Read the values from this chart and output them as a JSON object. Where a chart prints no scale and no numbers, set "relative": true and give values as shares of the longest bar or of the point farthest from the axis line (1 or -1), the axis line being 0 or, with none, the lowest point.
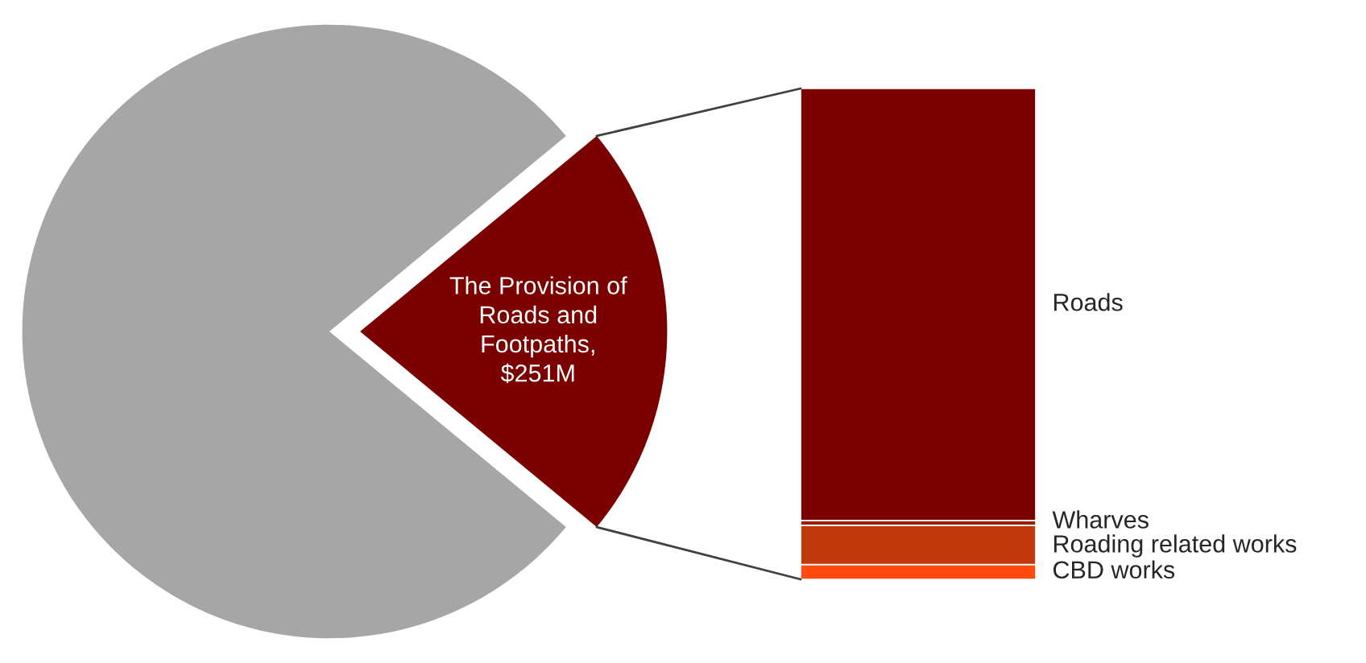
{
  "chart_data": [
    {
      "type": "pie",
      "categories": [
        "The Provision of\nRoads and\nFootpaths,\n$251M",
        null
      ],
      "values": [
        22,
        78
      ],
      "colors": [
        "#7b0000",
        "#a6a6a6"
      ],
      "legend": false
    },
    {
      "type": "bar",
      "stacked": true,
      "relative": true,
      "categories": [
        null
      ],
      "legend": false,
      "series": [
        {
          "name": "CBD works",
          "color": "#ff4a0f",
          "values": [
            0.03
          ]
        },
        {
          "name": "Roading related works",
          "color": "#c0390b",
          "values": [
            0.08
          ]
        },
        {
          "name": "Wharves",
          "color": "#a01c00",
          "values": [
            0.01
          ]
        },
        {
          "name": "Roads",
          "color": "#7b0000",
          "values": [
            0.88
          ]
        }
      ]
    }
  ]
}
